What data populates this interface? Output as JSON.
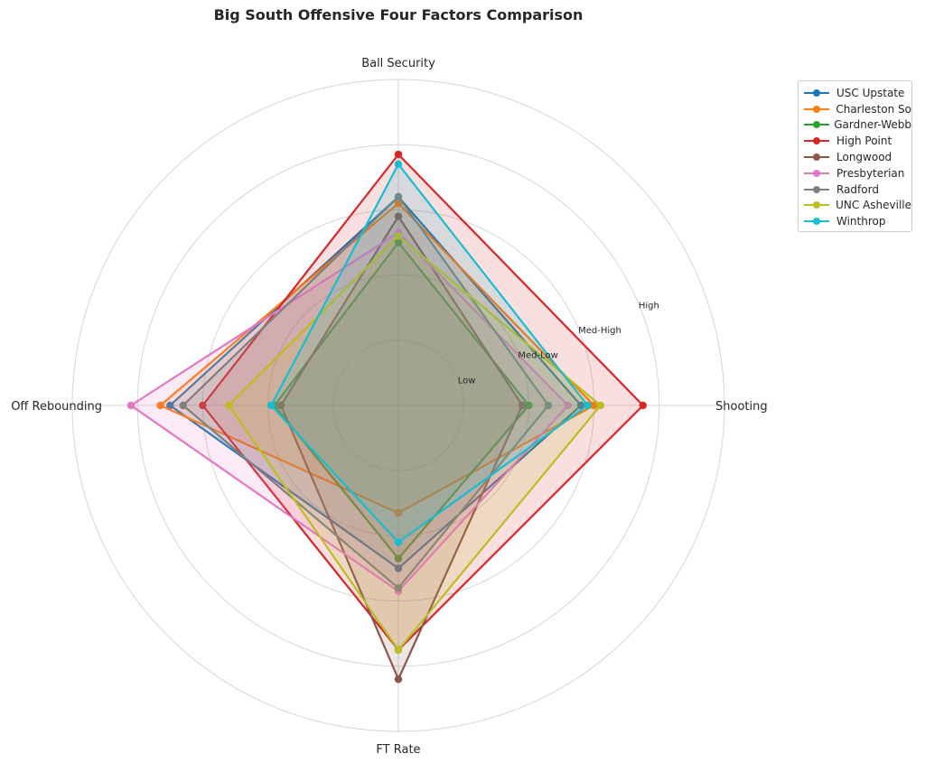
{
  "chart_data": {
    "type": "radar",
    "title": "Big South Offensive Four Factors Comparison",
    "axes": [
      "Shooting",
      "Ball Security",
      "Off Rebounding",
      "FT Rate"
    ],
    "rlim": [
      0,
      5
    ],
    "ring_labels": [
      {
        "label": "Low",
        "value": 1
      },
      {
        "label": "Med-Low",
        "value": 2
      },
      {
        "label": "Med-High",
        "value": 3
      },
      {
        "label": "High",
        "value": 4
      }
    ],
    "grid": true,
    "legend_position": "top-right",
    "series": [
      {
        "name": "USC Upstate",
        "color": "#1f77b4",
        "values": [
          2.8,
          3.2,
          3.5,
          2.5
        ]
      },
      {
        "name": "Charleston So",
        "color": "#ff7f0e",
        "values": [
          3.0,
          3.1,
          3.65,
          1.65
        ]
      },
      {
        "name": "Gardner-Webb",
        "color": "#2ca02c",
        "values": [
          2.0,
          2.5,
          1.9,
          2.35
        ]
      },
      {
        "name": "High Point",
        "color": "#d62728",
        "values": [
          3.75,
          3.85,
          3.0,
          3.75
        ]
      },
      {
        "name": "Longwood",
        "color": "#8c564b",
        "values": [
          1.9,
          2.9,
          1.8,
          4.2
        ]
      },
      {
        "name": "Presbyterian",
        "color": "#e377c2",
        "values": [
          2.6,
          2.65,
          4.1,
          2.85
        ]
      },
      {
        "name": "Radford",
        "color": "#7f7f7f",
        "values": [
          2.3,
          3.2,
          3.3,
          2.8
        ]
      },
      {
        "name": "UNC Asheville",
        "color": "#bcbd22",
        "values": [
          3.1,
          2.6,
          2.6,
          3.75
        ]
      },
      {
        "name": "Winthrop",
        "color": "#17becf",
        "values": [
          2.9,
          3.7,
          1.95,
          2.1
        ]
      }
    ]
  }
}
